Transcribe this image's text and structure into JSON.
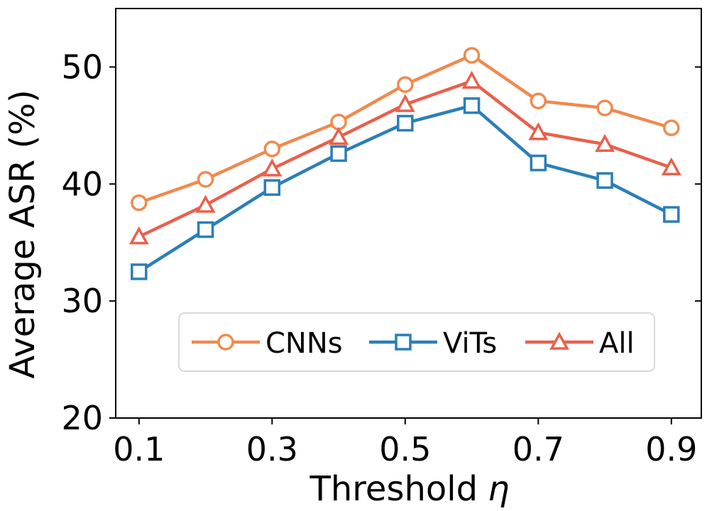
{
  "chart_data": {
    "type": "line",
    "title": "",
    "xlabel": "Threshold",
    "xlabel_symbol": "η",
    "ylabel": "Average ASR (%)",
    "x": [
      0.1,
      0.2,
      0.3,
      0.4,
      0.5,
      0.6,
      0.7,
      0.8,
      0.9
    ],
    "xticks": [
      "0.1",
      "0.3",
      "0.5",
      "0.7",
      "0.9"
    ],
    "xtick_values": [
      0.1,
      0.3,
      0.5,
      0.7,
      0.9
    ],
    "yticks": [
      "20",
      "30",
      "40",
      "50"
    ],
    "ytick_values": [
      20,
      30,
      40,
      50
    ],
    "xlim": [
      0.065,
      0.945
    ],
    "ylim": [
      20,
      55
    ],
    "grid": false,
    "legend_position": "lower-center",
    "series": [
      {
        "name": "CNNs",
        "marker": "circle",
        "color": "#ef8a4f",
        "values": [
          38.4,
          40.4,
          43.0,
          45.3,
          48.5,
          51.0,
          47.1,
          46.5,
          44.8
        ]
      },
      {
        "name": "ViTs",
        "marker": "square",
        "color": "#2a7fb8",
        "values": [
          32.5,
          36.1,
          39.7,
          42.6,
          45.2,
          46.7,
          41.8,
          40.3,
          37.4
        ]
      },
      {
        "name": "All",
        "marker": "triangle",
        "color": "#e9604c",
        "values": [
          35.5,
          38.2,
          41.3,
          44.0,
          46.8,
          48.8,
          44.4,
          43.4,
          41.4
        ]
      }
    ]
  }
}
